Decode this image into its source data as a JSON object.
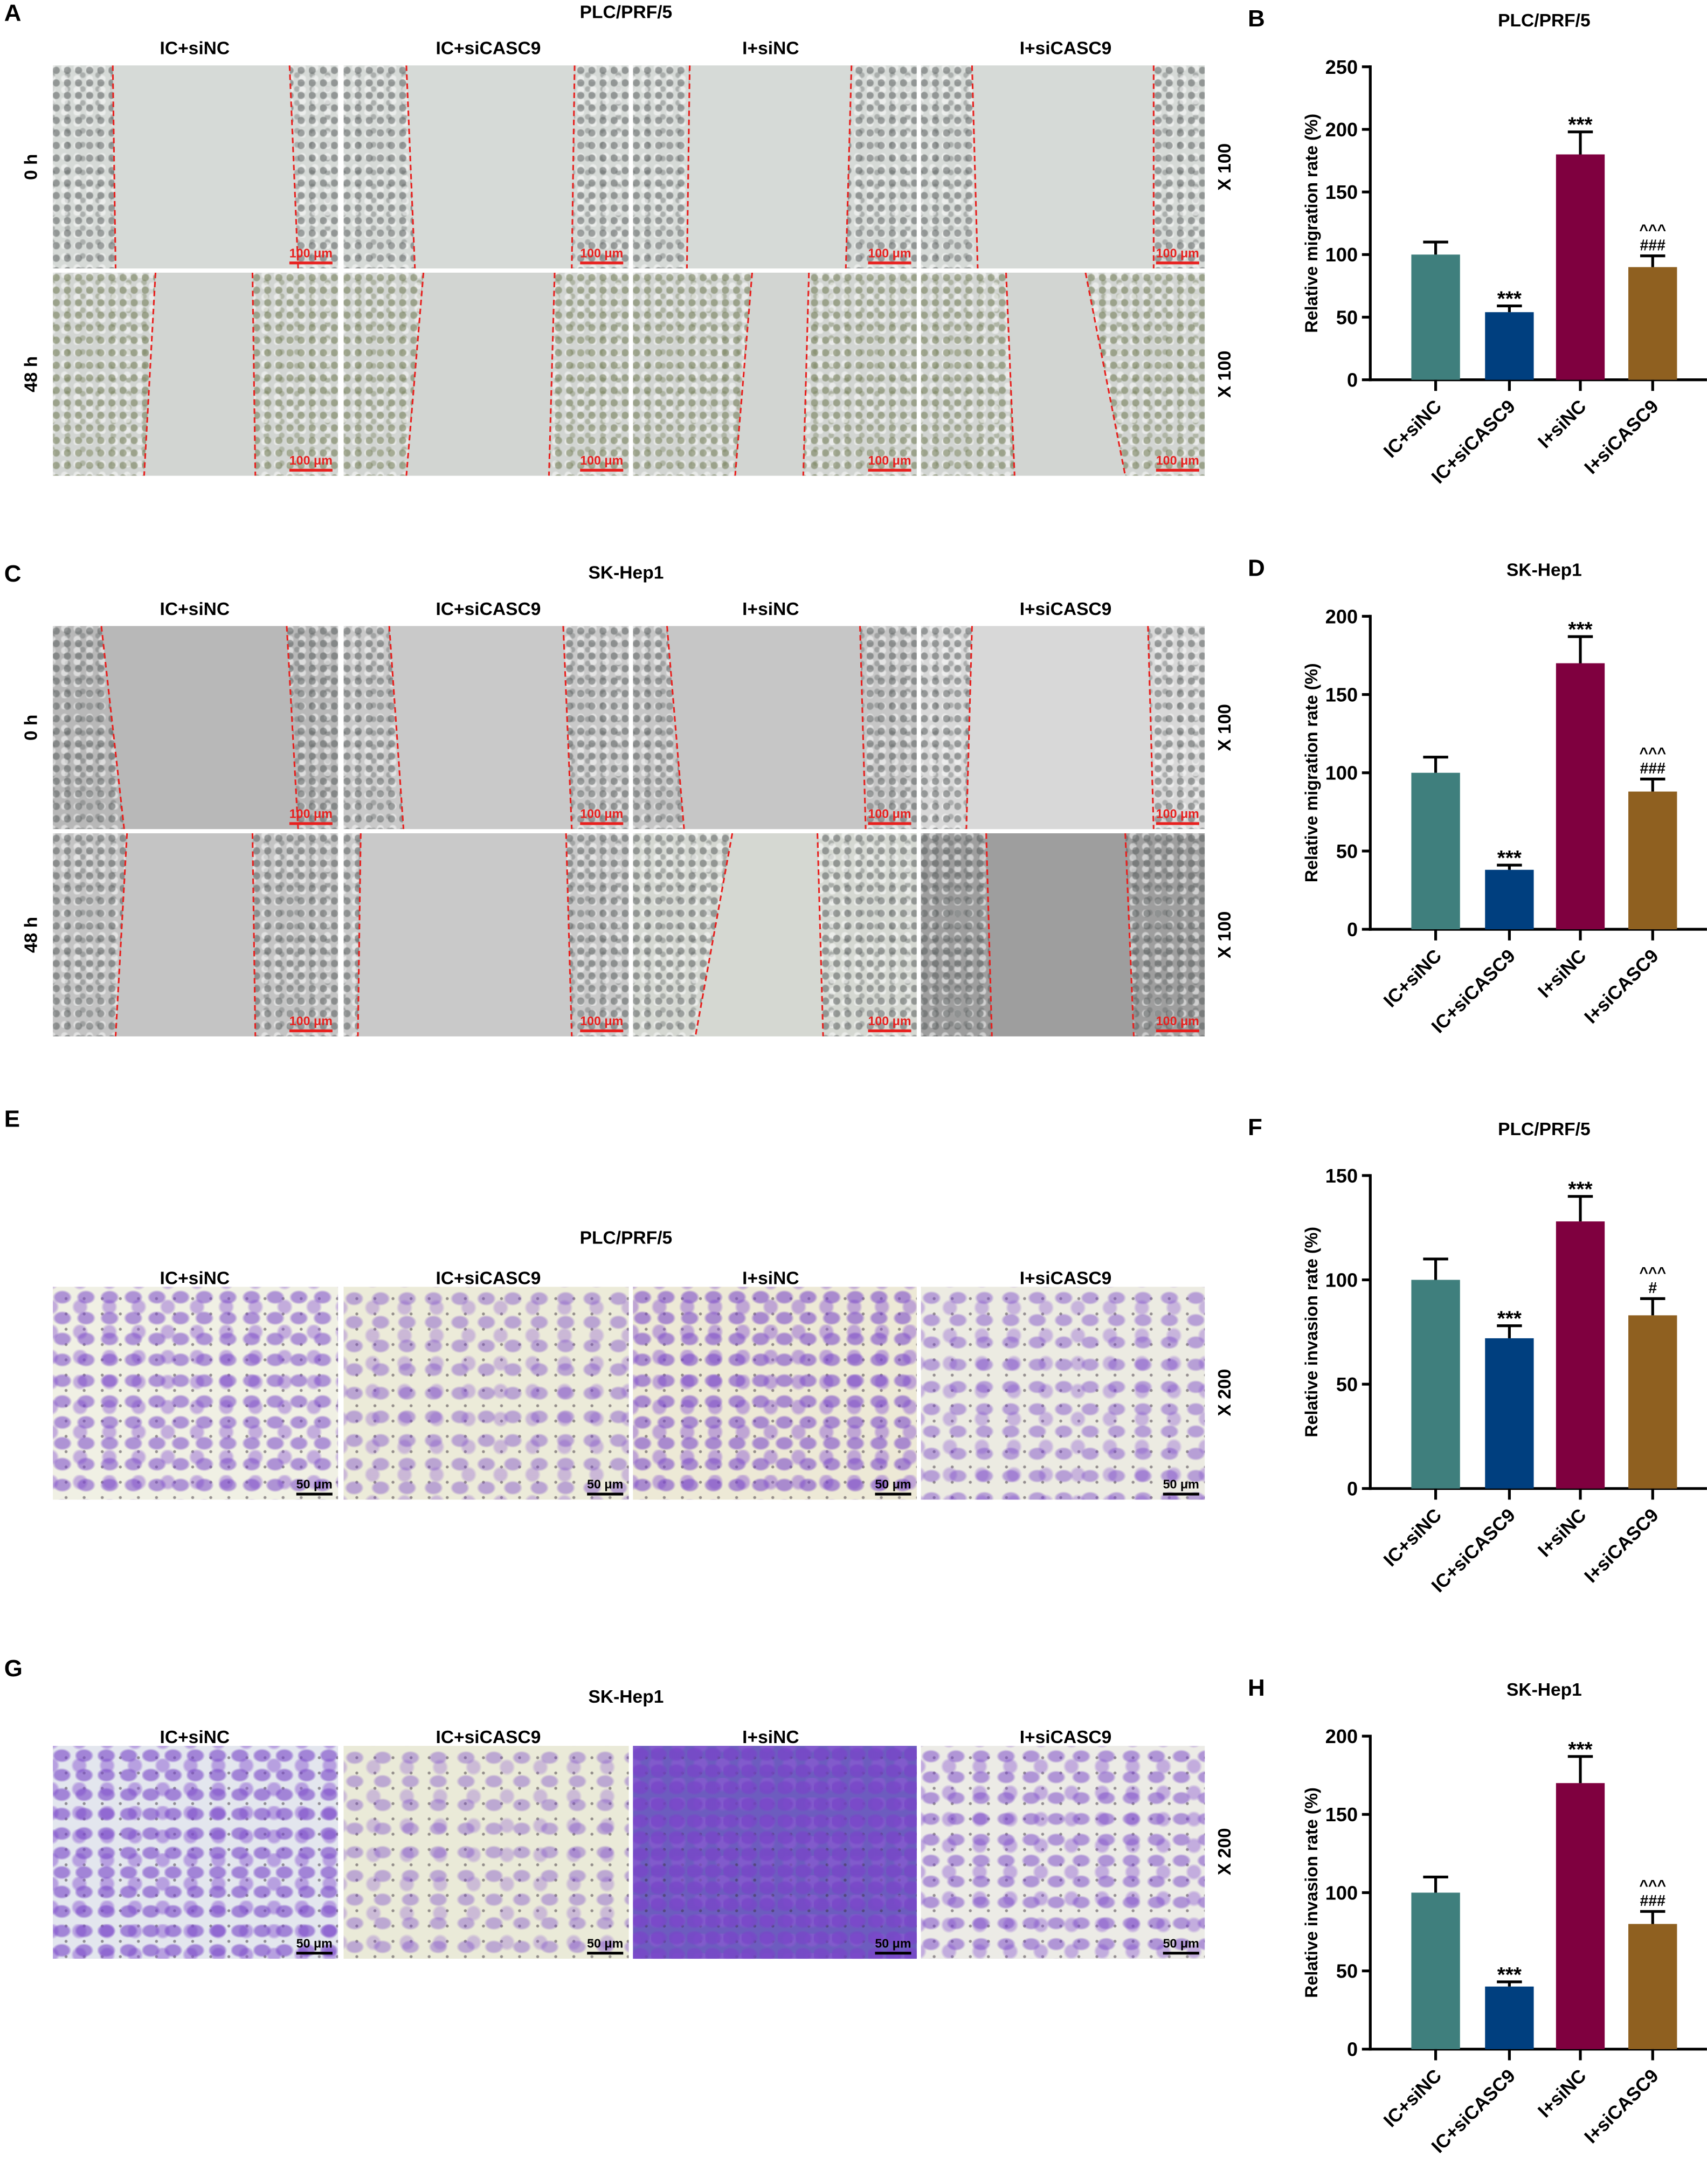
{
  "groups": [
    "IC+siNC",
    "IC+siCASC9",
    "I+siNC",
    "I+siCASC9"
  ],
  "colors": [
    "#3f7f7d",
    "#003f7f",
    "#7f003f",
    "#8f6020"
  ],
  "panels": {
    "A": {
      "letter": "A",
      "title": "PLC/PRF/5",
      "rows": [
        "0 h",
        "48 h"
      ],
      "magnification": "X 100",
      "scale_bar": "100 μm"
    },
    "C": {
      "letter": "C",
      "title": "SK-Hep1",
      "rows": [
        "0 h",
        "48 h"
      ],
      "magnification": "X 100",
      "scale_bar": "100 μm"
    },
    "E": {
      "letter": "E",
      "title": "PLC/PRF/5",
      "magnification": "X 200",
      "scale_bar": "50 μm"
    },
    "G": {
      "letter": "G",
      "title": "SK-Hep1",
      "magnification": "X 200",
      "scale_bar": "50 μm"
    }
  },
  "chart_data": [
    {
      "letter": "B",
      "type": "bar",
      "title": "PLC/PRF/5",
      "ylabel": "Relative migration rate (%)",
      "ylim": [
        0,
        250
      ],
      "yticks": [
        0,
        50,
        100,
        150,
        200,
        250
      ],
      "categories": [
        "IC+siNC",
        "IC+siCASC9",
        "I+siNC",
        "I+siCASC9"
      ],
      "values": [
        100,
        54,
        180,
        90
      ],
      "errors": [
        10,
        5,
        18,
        9
      ],
      "annotations": [
        [],
        [
          "***"
        ],
        [
          "***"
        ],
        [
          "^^^",
          "###"
        ]
      ]
    },
    {
      "letter": "D",
      "type": "bar",
      "title": "SK-Hep1",
      "ylabel": "Relative migration rate (%)",
      "ylim": [
        0,
        200
      ],
      "yticks": [
        0,
        50,
        100,
        150,
        200
      ],
      "categories": [
        "IC+siNC",
        "IC+siCASC9",
        "I+siNC",
        "I+siCASC9"
      ],
      "values": [
        100,
        38,
        170,
        88
      ],
      "errors": [
        10,
        3,
        17,
        8
      ],
      "annotations": [
        [],
        [
          "***"
        ],
        [
          "***"
        ],
        [
          "^^^",
          "###"
        ]
      ]
    },
    {
      "letter": "F",
      "type": "bar",
      "title": "PLC/PRF/5",
      "ylabel": "Relative invasion rate (%)",
      "ylim": [
        0,
        150
      ],
      "yticks": [
        0,
        50,
        100,
        150
      ],
      "categories": [
        "IC+siNC",
        "IC+siCASC9",
        "I+siNC",
        "I+siCASC9"
      ],
      "values": [
        100,
        72,
        128,
        83
      ],
      "errors": [
        10,
        6,
        12,
        8
      ],
      "annotations": [
        [],
        [
          "***"
        ],
        [
          "***"
        ],
        [
          "^^^",
          "#"
        ]
      ]
    },
    {
      "letter": "H",
      "type": "bar",
      "title": "SK-Hep1",
      "ylabel": "Relative invasion rate (%)",
      "ylim": [
        0,
        200
      ],
      "yticks": [
        0,
        50,
        100,
        150,
        200
      ],
      "categories": [
        "IC+siNC",
        "IC+siCASC9",
        "I+siNC",
        "I+siCASC9"
      ],
      "values": [
        100,
        40,
        170,
        80
      ],
      "errors": [
        10,
        3,
        17,
        8
      ],
      "annotations": [
        [],
        [
          "***"
        ],
        [
          "***"
        ],
        [
          "^^^",
          "###"
        ]
      ]
    }
  ]
}
